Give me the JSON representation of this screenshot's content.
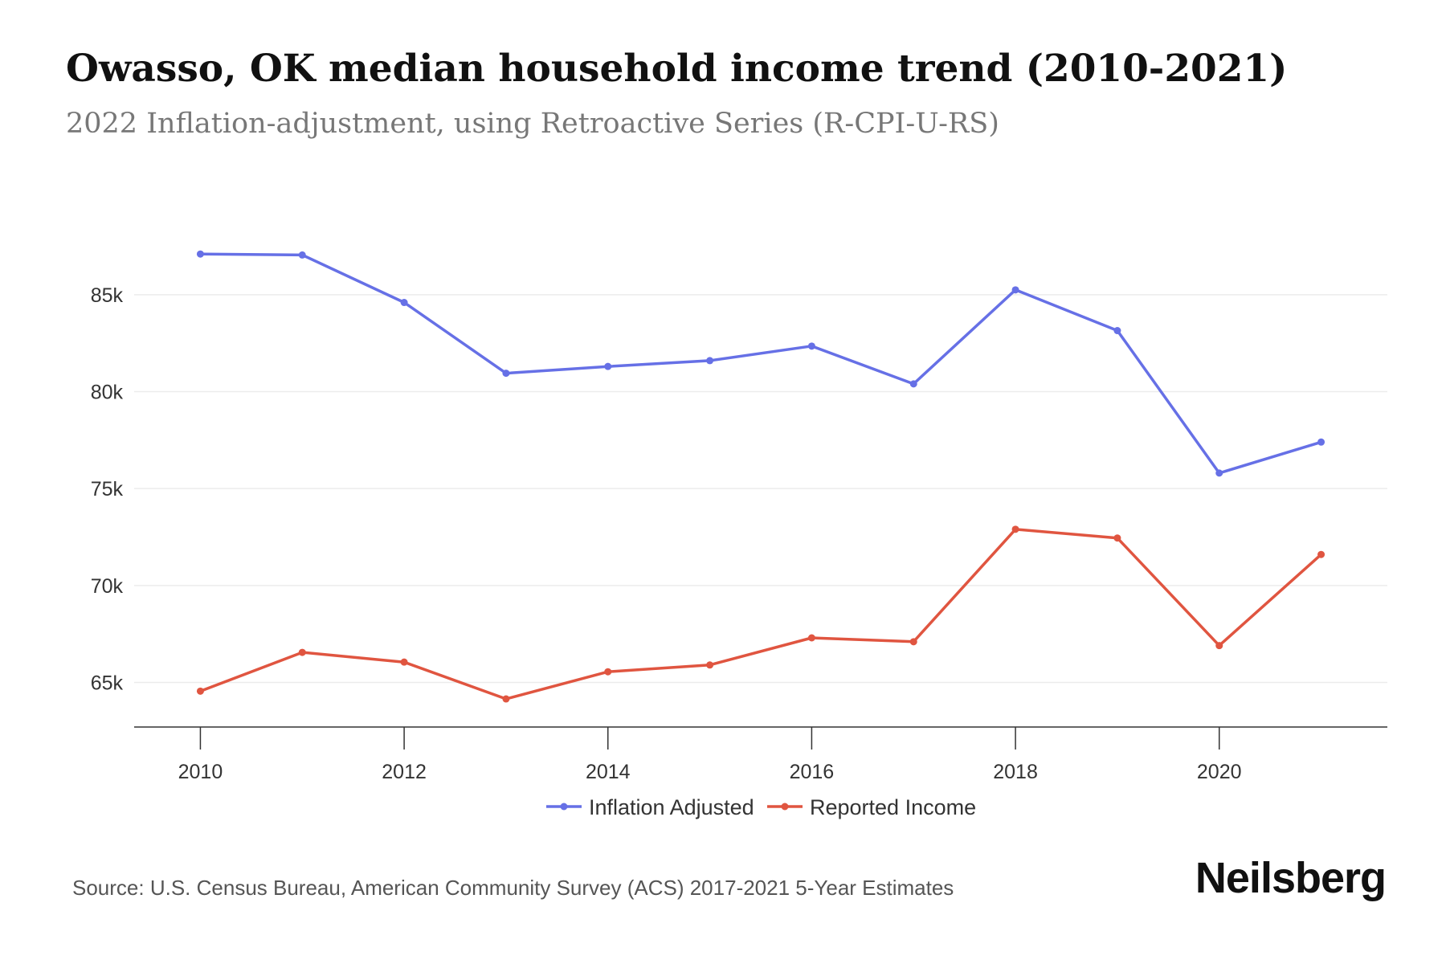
{
  "title": "Owasso, OK median household income trend (2010-2021)",
  "subtitle": "2022 Inflation-adjustment, using Retroactive Series (R-CPI-U-RS)",
  "source": "Source: U.S. Census Bureau, American Community Survey (ACS) 2017-2021 5-Year Estimates",
  "brand": "Neilsberg",
  "chart_data": {
    "type": "line",
    "title": "Owasso, OK median household income trend (2010-2021)",
    "subtitle": "2022 Inflation-adjustment, using Retroactive Series (R-CPI-U-RS)",
    "x": [
      2010,
      2011,
      2012,
      2013,
      2014,
      2015,
      2016,
      2017,
      2018,
      2019,
      2020,
      2021
    ],
    "x_ticks": [
      2010,
      2012,
      2014,
      2016,
      2018,
      2020
    ],
    "xlim": [
      2009.35,
      2021.65
    ],
    "y_ticks": [
      65000,
      70000,
      75000,
      80000,
      85000
    ],
    "y_tick_labels": [
      "65k",
      "70k",
      "75k",
      "80k",
      "85k"
    ],
    "ylim": [
      62700,
      88600
    ],
    "grid": "horizontal",
    "legend": "bottom-center",
    "series": [
      {
        "name": "Inflation Adjusted",
        "color": "#6670e6",
        "values": [
          87100,
          87050,
          84600,
          80950,
          81300,
          81600,
          82350,
          80400,
          85250,
          83150,
          75800,
          77400
        ]
      },
      {
        "name": "Reported Income",
        "color": "#e05540",
        "values": [
          64550,
          66550,
          66050,
          64150,
          65550,
          65900,
          67300,
          67100,
          72900,
          72450,
          66900,
          71600
        ]
      }
    ]
  }
}
